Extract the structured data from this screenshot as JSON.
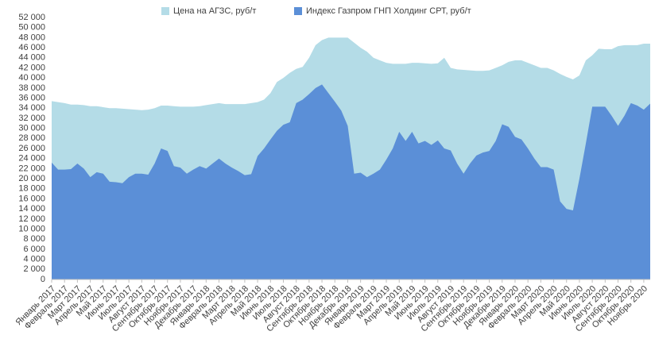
{
  "chart_data": {
    "type": "area",
    "categories": [
      "Январь 2017",
      null,
      "Февраль 2017",
      null,
      "Март 2017",
      null,
      "Апрель 2017",
      null,
      "Май 2017",
      null,
      "Июнь 2017",
      null,
      "Июль 2017",
      null,
      "Август 2017",
      null,
      "Сентябрь 2017",
      null,
      "Октябрь 2017",
      null,
      "Ноябрь 2017",
      null,
      "Декабрь 2017",
      null,
      "Январь 2018",
      null,
      "Февраль 2018",
      null,
      "Март 2018",
      null,
      "Апрель 2018",
      null,
      "Май 2018",
      null,
      "Июнь 2018",
      null,
      "Июль 2018",
      null,
      "Август 2018",
      null,
      "Сентябрь 2018",
      null,
      "Октябрь 2018",
      null,
      "Ноябрь 2018",
      null,
      "Декабрь 2018",
      null,
      "Январь 2019",
      null,
      "Февраль 2019",
      null,
      "Март 2019",
      null,
      "Апрель 2019",
      null,
      "Май 2019",
      null,
      "Июнь 2019",
      null,
      "Июль 2019",
      null,
      "Август 2019",
      null,
      "Сентябрь 2019",
      null,
      "Октябрь 2019",
      null,
      "Ноябрь 2019",
      null,
      "Декабрь 2019",
      null,
      "Январь 2020",
      null,
      "Февраль 2020",
      null,
      "Март 2020",
      null,
      "Апрель 2020",
      null,
      "Май 2020",
      null,
      "Июнь 2020",
      null,
      "Июль 2020",
      null,
      "Август 2020",
      null,
      "Сентябрь 2020",
      null,
      "Октябрь 2020",
      null,
      "Ноябрь 2020",
      null
    ],
    "series": [
      {
        "name": "Цена на АГЗС, руб/т",
        "color": "#b4dce7",
        "values": [
          35400,
          35200,
          35000,
          34700,
          34700,
          34600,
          34400,
          34400,
          34200,
          34000,
          34000,
          33900,
          33800,
          33700,
          33600,
          33700,
          34000,
          34500,
          34500,
          34400,
          34300,
          34300,
          34300,
          34400,
          34600,
          34800,
          35000,
          34800,
          34800,
          34800,
          34800,
          35000,
          35200,
          35700,
          37000,
          39200,
          40000,
          41000,
          41800,
          42200,
          44000,
          46500,
          47500,
          48000,
          48000,
          48000,
          48000,
          47000,
          46000,
          45200,
          44000,
          43500,
          43000,
          42800,
          42800,
          42800,
          43000,
          43000,
          42900,
          42800,
          42900,
          44000,
          42000,
          41700,
          41600,
          41500,
          41400,
          41400,
          41500,
          42000,
          42500,
          43200,
          43500,
          43500,
          43000,
          42500,
          42000,
          42000,
          41500,
          40800,
          40200,
          39700,
          40500,
          43500,
          44500,
          45800,
          45700,
          45700,
          46300,
          46500,
          46500,
          46500,
          46800,
          46800
        ]
      },
      {
        "name": "Индекс Газпром ГНП Холдинг СРТ, руб/т",
        "color": "#5b8fd7",
        "values": [
          23200,
          21800,
          21800,
          21900,
          23000,
          22000,
          20300,
          21300,
          21000,
          19400,
          19300,
          19100,
          20300,
          21000,
          21000,
          20800,
          23000,
          26000,
          25500,
          22500,
          22200,
          21000,
          21800,
          22500,
          22000,
          23000,
          24000,
          23000,
          22200,
          21500,
          20700,
          20900,
          24500,
          26000,
          27800,
          29500,
          30700,
          31200,
          35000,
          35700,
          36800,
          38000,
          38700,
          37000,
          35300,
          33500,
          30500,
          21000,
          21200,
          20300,
          21000,
          21800,
          23800,
          26000,
          29300,
          27500,
          29300,
          27000,
          27500,
          26700,
          27600,
          26000,
          25600,
          23000,
          21000,
          23000,
          24600,
          25200,
          25500,
          27500,
          30800,
          30300,
          28300,
          27800,
          26000,
          24000,
          22300,
          22300,
          21800,
          15500,
          14000,
          13700,
          20000,
          27000,
          34300,
          34300,
          34300,
          32500,
          30500,
          32500,
          35000,
          34500,
          33700,
          34900
        ]
      }
    ],
    "ylim": [
      0,
      52000
    ],
    "yticks": [
      0,
      {
        "value": 2000,
        "label": "2 000"
      },
      {
        "value": 4000,
        "label": "4 000"
      },
      {
        "value": 6000,
        "label": "6 000"
      },
      {
        "value": 8000,
        "label": "8 000"
      },
      {
        "value": 10000,
        "label": "10 000"
      },
      {
        "value": 12000,
        "label": "12 000"
      },
      {
        "value": 14000,
        "label": "14 000"
      },
      {
        "value": 16000,
        "label": "16 000"
      },
      {
        "value": 18000,
        "label": "18 000"
      },
      {
        "value": 20000,
        "label": "20 000"
      },
      {
        "value": 22000,
        "label": "22 000"
      },
      {
        "value": 24000,
        "label": "24 000"
      },
      {
        "value": 26000,
        "label": "26 000"
      },
      {
        "value": 28000,
        "label": "28 000"
      },
      {
        "value": 30000,
        "label": "30 000"
      },
      {
        "value": 32000,
        "label": "32 000"
      },
      {
        "value": 34000,
        "label": "34 000"
      },
      {
        "value": 36000,
        "label": "36 000"
      },
      {
        "value": 38000,
        "label": "38 000"
      },
      {
        "value": 40000,
        "label": "40 000"
      },
      {
        "value": 42000,
        "label": "42 000"
      },
      {
        "value": 44000,
        "label": "44 000"
      },
      {
        "value": 46000,
        "label": "46 000"
      },
      {
        "value": 48000,
        "label": "48 000"
      },
      {
        "value": 50000,
        "label": "50 000"
      },
      {
        "value": 52000,
        "label": "52 000"
      }
    ],
    "grid": false,
    "legend": "top"
  }
}
